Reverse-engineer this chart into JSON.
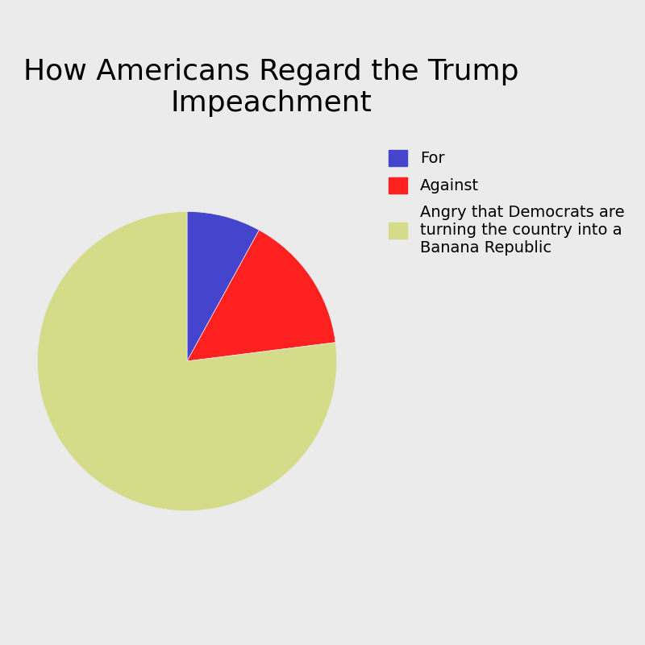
{
  "title": "How Americans Regard the Trump\nImpeachment",
  "slices": [
    {
      "label": "Angry that Democrats are\nturning the country into a\nBanana Republic",
      "value": 77,
      "color": "#d4dc8a"
    },
    {
      "label": "Against",
      "value": 15,
      "color": "#ff2020"
    },
    {
      "label": "For",
      "value": 8,
      "color": "#4444cc"
    }
  ],
  "background_color": "#ebebeb",
  "title_fontsize": 26,
  "legend_fontsize": 14
}
